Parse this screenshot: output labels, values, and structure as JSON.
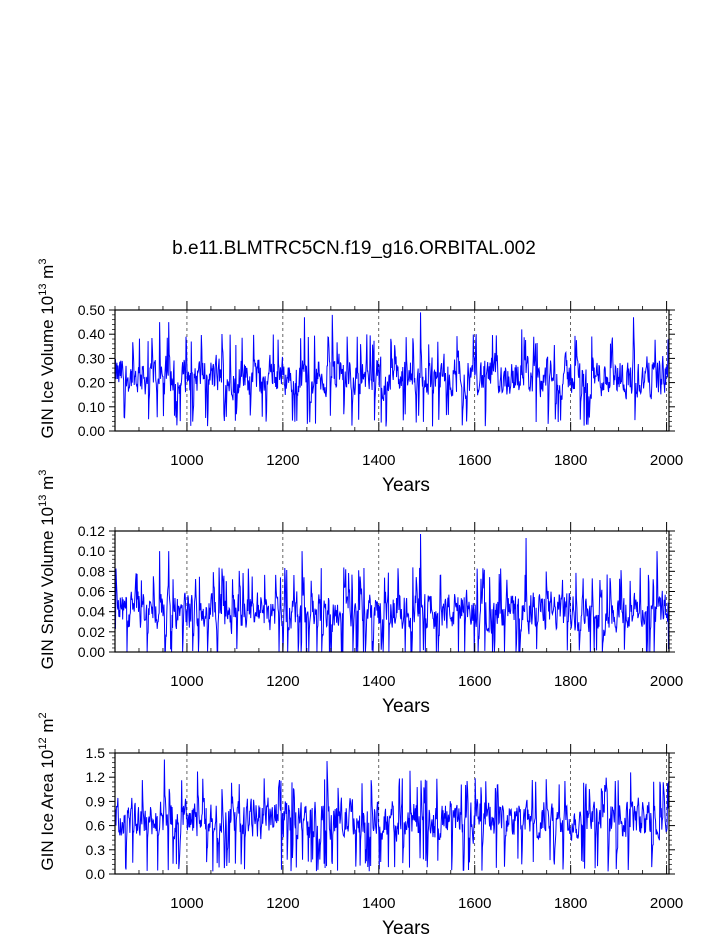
{
  "figure_title": "b.e11.BLMTRC5CN.f19_g16.ORBITAL.002",
  "chart_data": [
    {
      "type": "line",
      "title": "",
      "xlabel": "Years",
      "ylabel": "GIN Ice Volume 10",
      "ylabel_exp": "13",
      "ylabel_unit": " m",
      "ylabel_unit_exp": "3",
      "xlim": [
        850,
        2005
      ],
      "ylim": [
        0.0,
        0.5
      ],
      "xticks": [
        1000,
        1200,
        1400,
        1600,
        1800,
        2000
      ],
      "yticks": [
        "0.00",
        "0.10",
        "0.20",
        "0.30",
        "0.40",
        "0.50"
      ],
      "ytick_values": [
        0.0,
        0.1,
        0.2,
        0.3,
        0.4,
        0.5
      ],
      "grid": "vertical dashed at major x ticks",
      "series": [
        {
          "color": "#0000ff",
          "x_start": 850,
          "x_end": 2005,
          "mean": 0.2,
          "typical_min": 0.07,
          "typical_max": 0.35,
          "extremes": [
            [
              943,
              0.45
            ],
            [
              962,
              0.45
            ],
            [
              1245,
              0.47
            ],
            [
              1303,
              0.48
            ],
            [
              1487,
              0.49
            ],
            [
              1622,
              0.02
            ],
            [
              1931,
              0.47
            ],
            [
              1698,
              0.42
            ]
          ]
        }
      ]
    },
    {
      "type": "line",
      "title": "",
      "xlabel": "Years",
      "ylabel": "GIN Snow Volume 10",
      "ylabel_exp": "13",
      "ylabel_unit": " m",
      "ylabel_unit_exp": "3",
      "xlim": [
        850,
        2005
      ],
      "ylim": [
        0.0,
        0.12
      ],
      "xticks": [
        1000,
        1200,
        1400,
        1600,
        1800,
        2000
      ],
      "yticks": [
        "0.00",
        "0.02",
        "0.04",
        "0.06",
        "0.08",
        "0.10",
        "0.12"
      ],
      "ytick_values": [
        0.0,
        0.02,
        0.04,
        0.06,
        0.08,
        0.1,
        0.12
      ],
      "grid": "vertical dashed at major x ticks",
      "series": [
        {
          "color": "#0000ff",
          "x_start": 850,
          "x_end": 2005,
          "mean": 0.03,
          "typical_min": 0.003,
          "typical_max": 0.07,
          "extremes": [
            [
              943,
              0.1
            ],
            [
              962,
              0.1
            ],
            [
              1240,
              0.1
            ],
            [
              1487,
              0.117
            ],
            [
              1707,
              0.113
            ],
            [
              1980,
              0.1
            ]
          ]
        }
      ]
    },
    {
      "type": "line",
      "title": "",
      "xlabel": "Years",
      "ylabel": "GIN Ice Area 10",
      "ylabel_exp": "12",
      "ylabel_unit": " m",
      "ylabel_unit_exp": "2",
      "xlim": [
        850,
        2005
      ],
      "ylim": [
        0.0,
        1.5
      ],
      "xticks": [
        1000,
        1200,
        1400,
        1600,
        1800,
        2000
      ],
      "yticks": [
        "0.0",
        "0.3",
        "0.6",
        "0.9",
        "1.2",
        "1.5"
      ],
      "ytick_values": [
        0.0,
        0.3,
        0.6,
        0.9,
        1.2,
        1.5
      ],
      "grid": "vertical dashed at major x ticks",
      "series": [
        {
          "color": "#0000ff",
          "x_start": 850,
          "x_end": 2005,
          "mean": 0.62,
          "typical_min": 0.2,
          "typical_max": 1.05,
          "extremes": [
            [
              953,
              1.42
            ],
            [
              1022,
              1.27
            ],
            [
              1292,
              1.4
            ],
            [
              1465,
              1.28
            ],
            [
              1925,
              1.26
            ],
            [
              872,
              0.08
            ],
            [
              1920,
              0.05
            ]
          ]
        }
      ]
    }
  ]
}
